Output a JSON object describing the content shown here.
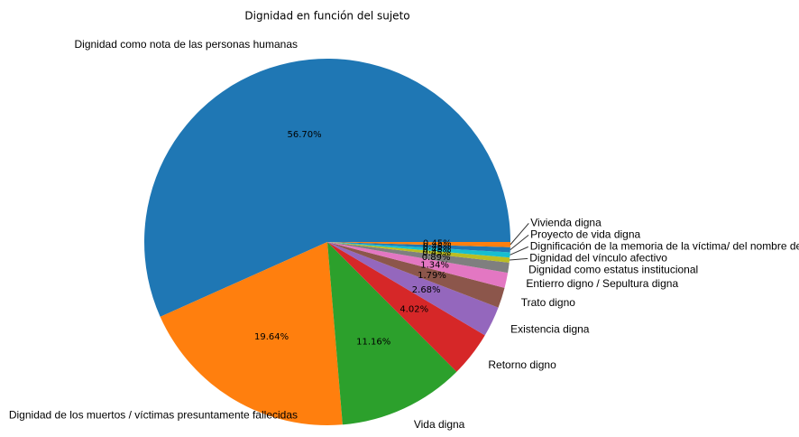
{
  "chart_data": {
    "type": "pie",
    "title": "Dignidad en función del sujeto",
    "categories": [
      "Dignidad como nota de las personas humanas",
      "Dignidad de los muertos / víctimas presuntamente fallecidas",
      "Vida digna",
      "Retorno digno",
      "Existencia digna",
      "Trato digno",
      "Entierro digno / Sepultura digna",
      "Dignidad como estatus institucional",
      "Dignidad del vínculo afectivo",
      "Dignificación de la memoria de la víctima/ del nombre de",
      "Proyecto de vida digna",
      "Vivienda digna"
    ],
    "values": [
      56.7,
      19.64,
      11.16,
      4.02,
      2.68,
      1.79,
      1.34,
      0.89,
      0.45,
      0.45,
      0.45,
      0.45
    ],
    "value_labels": [
      "56.70%",
      "19.64%",
      "11.16%",
      "4.02%",
      "2.68%",
      "1.79%",
      "1.34%",
      "0.89%",
      "0.45%",
      "0.45%",
      "0.45%",
      "0.45%"
    ],
    "colors": [
      "#1f77b4",
      "#ff7f0e",
      "#2ca02c",
      "#d62728",
      "#9467bd",
      "#8c564b",
      "#e377c2",
      "#7f7f7f",
      "#bcbd22",
      "#17becf",
      "#1f77b4",
      "#ff7f0e"
    ]
  }
}
